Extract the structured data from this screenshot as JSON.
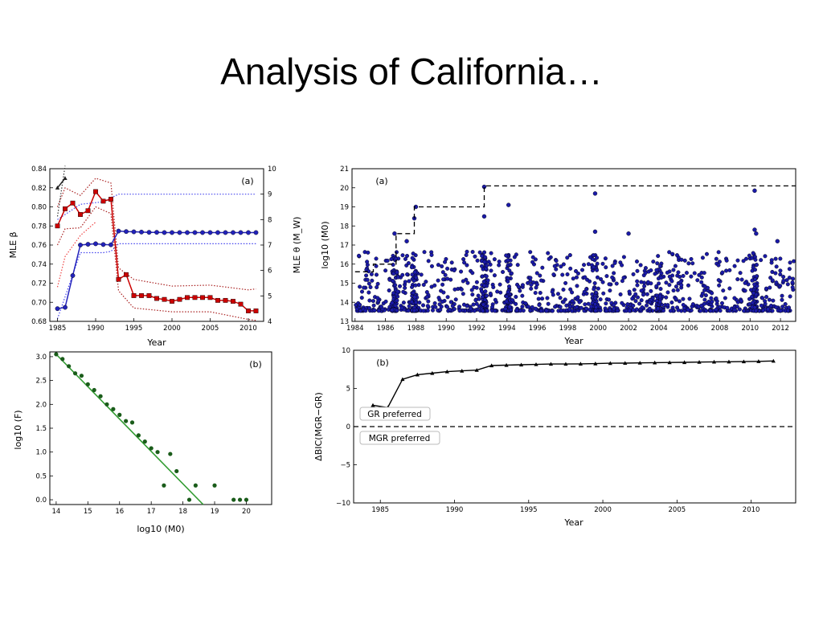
{
  "slide": {
    "title": "Analysis of California…"
  },
  "chart_data": [
    {
      "id": "left_a",
      "type": "line",
      "panel_label": "(a)",
      "xlabel": "Year",
      "ylabel": "MLE β",
      "y2label": "MLE θ (M_W)",
      "xlim": [
        1984,
        2012
      ],
      "ylim": [
        0.68,
        0.84
      ],
      "y2lim": [
        4,
        10
      ],
      "xticks": [
        1985,
        1990,
        1995,
        2000,
        2005,
        2010
      ],
      "yticks": [
        "0.68",
        "0.70",
        "0.72",
        "0.74",
        "0.76",
        "0.78",
        "0.80",
        "0.82",
        "0.84"
      ],
      "y2ticks": [
        "4",
        "5",
        "6",
        "7",
        "8",
        "9",
        "10"
      ],
      "series": [
        {
          "axis": "left",
          "color": "#222222",
          "marker": "triangle",
          "x": [
            1985,
            1986
          ],
          "y": [
            0.82,
            0.83
          ]
        },
        {
          "axis": "left",
          "color": "#cc0000",
          "marker": "square",
          "x": [
            1985,
            1986,
            1987,
            1988,
            1989,
            1990,
            1991,
            1992,
            1993,
            1994,
            1995,
            1996,
            1997,
            1998,
            1999,
            2000,
            2001,
            2002,
            2003,
            2004,
            2005,
            2006,
            2007,
            2008,
            2009,
            2010,
            2011
          ],
          "y": [
            0.78,
            0.798,
            0.804,
            0.792,
            0.796,
            0.816,
            0.806,
            0.808,
            0.724,
            0.729,
            0.707,
            0.707,
            0.707,
            0.704,
            0.703,
            0.701,
            0.703,
            0.705,
            0.705,
            0.705,
            0.705,
            0.702,
            0.702,
            0.701,
            0.698,
            0.691,
            0.691
          ]
        },
        {
          "axis": "right",
          "color": "#2222bb",
          "marker": "circle",
          "x": [
            1985,
            1986,
            1987,
            1988,
            1989,
            1990,
            1991,
            1992,
            1993,
            1994,
            1995,
            1996,
            1997,
            1998,
            1999,
            2000,
            2001,
            2002,
            2003,
            2004,
            2005,
            2006,
            2007,
            2008,
            2009,
            2010,
            2011
          ],
          "y": [
            4.5,
            4.55,
            5.8,
            7.0,
            7.03,
            7.05,
            7.02,
            7.01,
            7.55,
            7.53,
            7.52,
            7.51,
            7.5,
            7.5,
            7.49,
            7.49,
            7.49,
            7.49,
            7.49,
            7.49,
            7.49,
            7.49,
            7.49,
            7.49,
            7.49,
            7.49,
            7.49
          ]
        }
      ],
      "bounds": [
        {
          "axis": "right",
          "color": "#4444ee",
          "x": [
            1985,
            1988,
            1991,
            1992,
            1993,
            2011
          ],
          "y": [
            8.0,
            8.6,
            8.7,
            8.85,
            9.0,
            9.0
          ]
        },
        {
          "axis": "right",
          "color": "#4444ee",
          "x": [
            1985,
            1988,
            1991,
            1992,
            1993,
            2011
          ],
          "y": [
            4.1,
            6.7,
            6.7,
            6.75,
            7.05,
            7.05
          ]
        },
        {
          "axis": "left",
          "color": "#aa2222",
          "x": [
            1985,
            1986,
            1988,
            1990,
            1992,
            1993,
            1995,
            2000,
            2005,
            2010,
            2011
          ],
          "y": [
            0.8,
            0.82,
            0.812,
            0.83,
            0.825,
            0.736,
            0.724,
            0.717,
            0.718,
            0.713,
            0.714
          ]
        },
        {
          "axis": "left",
          "color": "#aa2222",
          "x": [
            1985,
            1986,
            1988,
            1990,
            1992,
            1993,
            1995,
            2000,
            2005,
            2010,
            2011
          ],
          "y": [
            0.76,
            0.777,
            0.778,
            0.8,
            0.793,
            0.712,
            0.694,
            0.69,
            0.69,
            0.682,
            0.681
          ]
        },
        {
          "axis": "left",
          "color": "#333333",
          "x": [
            1985,
            1986
          ],
          "y": [
            0.79,
            0.843
          ]
        },
        {
          "axis": "left",
          "color": "#ee4444",
          "x": [
            1985,
            1986,
            1988,
            1990
          ],
          "y": [
            0.716,
            0.748,
            0.77,
            0.784
          ]
        }
      ]
    },
    {
      "id": "left_b",
      "type": "scatter",
      "panel_label": "(b)",
      "xlabel": "log10 (M0)",
      "ylabel": "log10 (F)",
      "xlim": [
        13.8,
        20.8
      ],
      "ylim": [
        -0.1,
        3.1
      ],
      "xticks": [
        "14",
        "15",
        "16",
        "17",
        "18",
        "19",
        "20"
      ],
      "yticks": [
        "0.0",
        "0.5",
        "1.0",
        "1.5",
        "2.0",
        "2.5",
        "3.0"
      ],
      "points": {
        "color": "#1a5c1a",
        "x": [
          14.0,
          14.2,
          14.4,
          14.6,
          14.8,
          15.0,
          15.2,
          15.4,
          15.6,
          15.8,
          16.0,
          16.2,
          16.4,
          16.6,
          16.8,
          17.0,
          17.2,
          17.4,
          17.6,
          17.8,
          18.2,
          18.4,
          19.0,
          19.6,
          19.8,
          20.0
        ],
        "y": [
          3.05,
          2.95,
          2.8,
          2.65,
          2.6,
          2.42,
          2.3,
          2.17,
          2.0,
          1.9,
          1.78,
          1.65,
          1.62,
          1.35,
          1.22,
          1.08,
          1.0,
          0.3,
          0.96,
          0.6,
          0.0,
          0.3,
          0.3,
          0.0,
          0.0,
          0.0
        ]
      },
      "fit": {
        "color": "#2f9a2f",
        "x": [
          14.0,
          18.64
        ],
        "y": [
          3.05,
          -0.1
        ]
      }
    },
    {
      "id": "right_a",
      "type": "scatter",
      "panel_label": "(a)",
      "xlabel": "Year",
      "ylabel": "log10 (M0)",
      "xlim": [
        1983.8,
        2013.0
      ],
      "ylim": [
        13,
        21
      ],
      "xticks": [
        "1984",
        "1986",
        "1988",
        "1990",
        "1992",
        "1994",
        "1996",
        "1998",
        "2000",
        "2002",
        "2004",
        "2006",
        "2008",
        "2010",
        "2012"
      ],
      "yticks": [
        "13",
        "14",
        "15",
        "16",
        "17",
        "18",
        "19",
        "20",
        "21"
      ],
      "color": "#1a1aa8",
      "max_envelope": {
        "x": [
          1984,
          1985.2,
          1985.2,
          1986.7,
          1986.7,
          1987.9,
          1987.9,
          1992.5,
          1992.5,
          2013.0
        ],
        "y": [
          15.6,
          15.6,
          16.0,
          16.0,
          17.6,
          17.6,
          19.0,
          19.0,
          20.1,
          20.1
        ]
      },
      "notable_events": {
        "x": [
          1986.6,
          1987.4,
          1987.9,
          1988.0,
          1992.5,
          1992.5,
          1994.1,
          1999.8,
          1999.8,
          2002.0,
          2010.3,
          2010.3,
          2010.4,
          2011.8
        ],
        "y": [
          17.6,
          17.2,
          18.4,
          19.0,
          20.05,
          18.5,
          19.1,
          19.7,
          17.7,
          17.6,
          19.85,
          17.8,
          17.6,
          17.2
        ]
      }
    },
    {
      "id": "right_b",
      "type": "line",
      "panel_label": "(b)",
      "xlabel": "Year",
      "ylabel": "ΔBIC(MGR−GR)",
      "xlim": [
        1983.2,
        2013.0
      ],
      "ylim": [
        -10,
        10
      ],
      "xticks": [
        "1985",
        "1990",
        "1995",
        "2000",
        "2005",
        "2010"
      ],
      "yticks": [
        "10",
        "5",
        "0",
        "−5",
        "−10"
      ],
      "annotations": [
        "GR preferred",
        "MGR preferred"
      ],
      "series": [
        {
          "color": "#000000",
          "marker": "triangle",
          "x": [
            1984.5,
            1985.5,
            1986.5,
            1987.5,
            1988.5,
            1989.5,
            1990.5,
            1991.5,
            1992.5,
            1993.5,
            1994.5,
            1995.5,
            1996.5,
            1997.5,
            1998.5,
            1999.5,
            2000.5,
            2001.5,
            2002.5,
            2003.5,
            2004.5,
            2005.5,
            2006.5,
            2007.5,
            2008.5,
            2009.5,
            2010.5,
            2011.5
          ],
          "y": [
            2.8,
            2.5,
            6.2,
            6.8,
            7.0,
            7.2,
            7.3,
            7.4,
            8.0,
            8.05,
            8.1,
            8.15,
            8.2,
            8.2,
            8.22,
            8.25,
            8.3,
            8.32,
            8.35,
            8.38,
            8.4,
            8.42,
            8.45,
            8.48,
            8.5,
            8.52,
            8.55,
            8.6
          ]
        }
      ]
    }
  ]
}
